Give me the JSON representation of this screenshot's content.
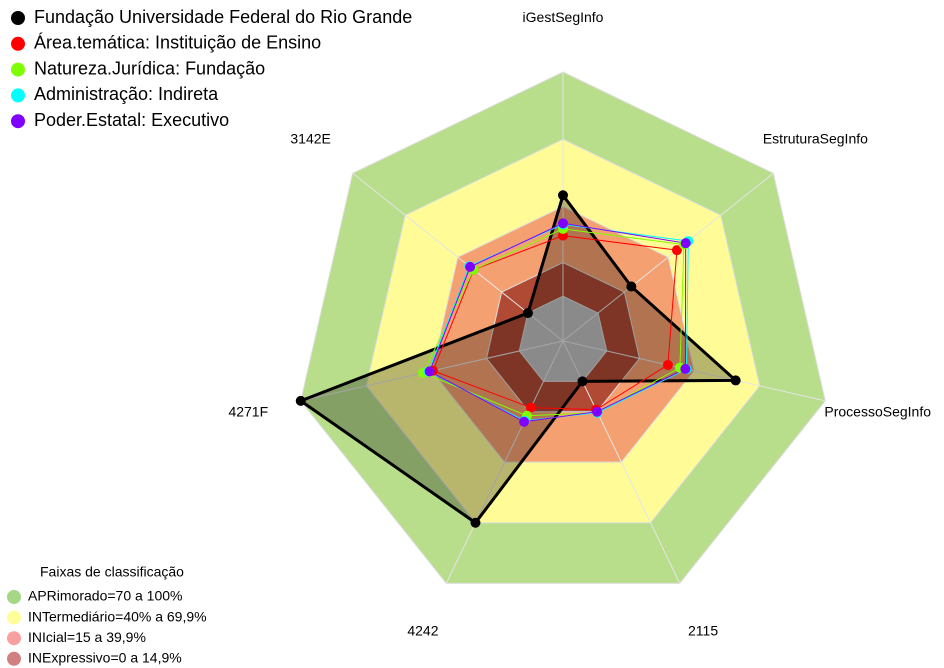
{
  "chart_data": {
    "type": "radar",
    "categories": [
      "iGestSegInfo",
      "EstruturaSegInfo",
      "ProcessoSegInfo",
      "2115",
      "4242",
      "4271F",
      "3142E"
    ],
    "ylim": [
      -20,
      100
    ],
    "center_color": "#c0c0c0",
    "bands_title": "Faixas de classificação",
    "bands": [
      {
        "label": "APRimorado=70 a 100%",
        "from": 70,
        "to": 100,
        "color": "#b8de8c",
        "legend_color": "#a6d785"
      },
      {
        "label": "INTermediário=40% a 69,9%",
        "from": 40,
        "to": 70,
        "color": "#fffc98",
        "legend_color": "#ffff99"
      },
      {
        "label": "INIcial=15 a 39,9%",
        "from": 15,
        "to": 40,
        "color": "#f5a070",
        "legend_color": "#f8a0a0"
      },
      {
        "label": "INExpressivo=0 a 14,9%",
        "from": 0,
        "to": 15,
        "color": "#b04a34",
        "legend_color": "#d08080"
      }
    ],
    "series": [
      {
        "name": "Fundação Universidade Federal do Rio Grande",
        "color": "#000000",
        "values": [
          45,
          19,
          59,
          0,
          70,
          100,
          0
        ]
      },
      {
        "name": "Área.temática: Instituição de Ensino",
        "color": "#ff0000",
        "values": [
          27,
          45,
          28,
          14,
          13,
          39.5,
          31
        ]
      },
      {
        "name": "Natureza.Jurídica: Fundação",
        "color": "#7fff00",
        "values": [
          30,
          49,
          33.5,
          15.5,
          17,
          44,
          31
        ]
      },
      {
        "name": "Administração: Indireta",
        "color": "#00ffff",
        "values": [
          32,
          51.5,
          36.5,
          15.5,
          19.5,
          41.5,
          33.5
        ]
      },
      {
        "name": "Poder.Estatal: Executivo",
        "color": "#8000ff",
        "values": [
          32.5,
          50,
          36,
          15,
          20,
          41,
          33
        ]
      }
    ]
  }
}
